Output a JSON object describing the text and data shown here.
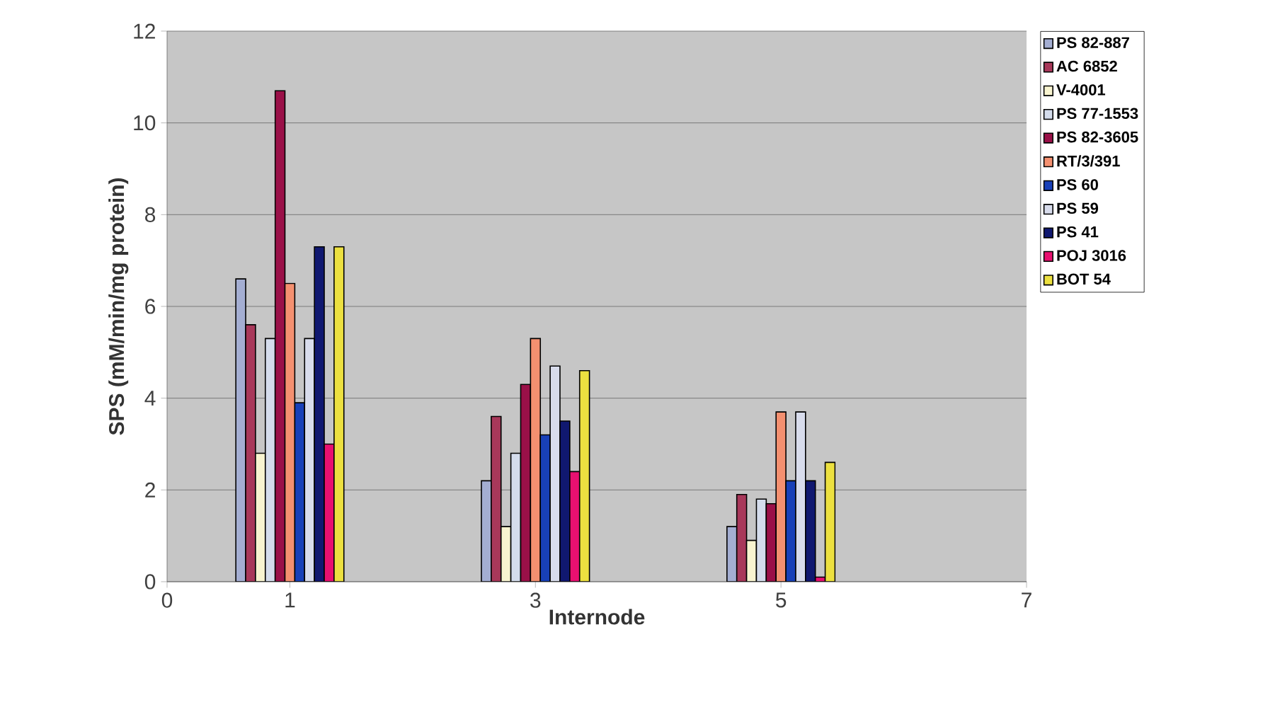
{
  "chart_data": {
    "type": "bar",
    "xlabel": "Internode",
    "ylabel": "SPS (mM/min/mg protein)",
    "x": [
      1,
      3,
      5
    ],
    "xlim": [
      0,
      7
    ],
    "xticks": [
      0,
      1,
      3,
      5,
      7
    ],
    "ylim": [
      0,
      12
    ],
    "yticks": [
      0,
      2,
      4,
      6,
      8,
      10,
      12
    ],
    "grid": "y",
    "legend": "right",
    "series": [
      {
        "name": "PS 82-887",
        "color": "#a4aed2",
        "values": [
          6.6,
          2.2,
          1.2
        ]
      },
      {
        "name": "AC 6852",
        "color": "#a8385a",
        "values": [
          5.6,
          3.6,
          1.9
        ]
      },
      {
        "name": "V-4001",
        "color": "#f8f4d0",
        "values": [
          2.8,
          1.2,
          0.9
        ]
      },
      {
        "name": "PS 77-1553",
        "color": "#d4dcec",
        "values": [
          5.3,
          2.8,
          1.8
        ]
      },
      {
        "name": "PS 82-3605",
        "color": "#9a1048",
        "values": [
          10.7,
          4.3,
          1.7
        ]
      },
      {
        "name": "RT/3/391",
        "color": "#f49070",
        "values": [
          6.5,
          5.3,
          3.7
        ]
      },
      {
        "name": "PS 60",
        "color": "#1840b8",
        "values": [
          3.9,
          3.2,
          2.2
        ]
      },
      {
        "name": "PS 59",
        "color": "#d8dcec",
        "values": [
          5.3,
          4.7,
          3.7
        ]
      },
      {
        "name": "PS 41",
        "color": "#101870",
        "values": [
          7.3,
          3.5,
          2.2
        ]
      },
      {
        "name": "POJ 3016",
        "color": "#e81070",
        "values": [
          3.0,
          2.4,
          0.1
        ]
      },
      {
        "name": "BOT 54",
        "color": "#ece040",
        "values": [
          7.3,
          4.6,
          2.6
        ]
      }
    ]
  }
}
